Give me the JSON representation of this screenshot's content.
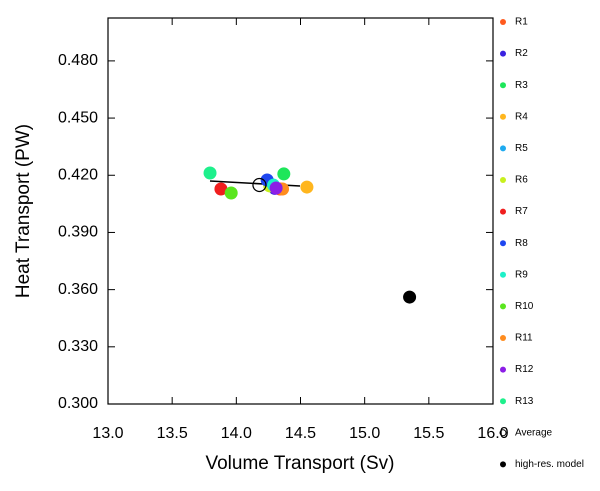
{
  "chart_data": {
    "type": "scatter",
    "xlabel": "Volume Transport (Sv)",
    "ylabel": "Heat Transport (PW)",
    "xlim": [
      13.0,
      16.0
    ],
    "xticks": [
      {
        "value": 13,
        "label": "13.0"
      },
      {
        "value": 13.5,
        "label": "13.5"
      },
      {
        "value": 14,
        "label": "14.0"
      },
      {
        "value": 14.5,
        "label": "14.5"
      },
      {
        "value": 15,
        "label": "15.0"
      },
      {
        "value": 15.5,
        "label": "15.5"
      },
      {
        "value": 16,
        "label": "16.0"
      }
    ],
    "ylim": [
      0.3,
      0.5025
    ],
    "yticks": [
      {
        "value": 0.3,
        "label": "0.300"
      },
      {
        "value": 0.33,
        "label": "0.330"
      },
      {
        "value": 0.36,
        "label": "0.360"
      },
      {
        "value": 0.39,
        "label": "0.390"
      },
      {
        "value": 0.42,
        "label": "0.420"
      },
      {
        "value": 0.45,
        "label": "0.450"
      },
      {
        "value": 0.48,
        "label": "0.480"
      }
    ],
    "legend": "right",
    "series": [
      {
        "name": "R1",
        "color": "#ff5a1e",
        "x": [
          14.34
        ],
        "values": [
          0.4128
        ]
      },
      {
        "name": "R2",
        "color": "#3a22e0",
        "x": [
          14.3
        ],
        "values": [
          0.4131
        ]
      },
      {
        "name": "R3",
        "color": "#1ee65a",
        "x": [
          14.37
        ],
        "values": [
          0.4207
        ]
      },
      {
        "name": "R4",
        "color": "#ffb61e",
        "x": [
          14.55
        ],
        "values": [
          0.4138
        ]
      },
      {
        "name": "R5",
        "color": "#1eaaf0",
        "x": [
          14.27
        ],
        "values": [
          0.4152
        ]
      },
      {
        "name": "R6",
        "color": "#c8f01e",
        "x": [
          14.26
        ],
        "values": [
          0.4144
        ]
      },
      {
        "name": "R7",
        "color": "#f01e1e",
        "x": [
          13.88
        ],
        "values": [
          0.4128
        ]
      },
      {
        "name": "R8",
        "color": "#1e46f0",
        "x": [
          14.24
        ],
        "values": [
          0.4175
        ]
      },
      {
        "name": "R9",
        "color": "#1ef0c8",
        "x": [
          14.29
        ],
        "values": [
          0.4148
        ]
      },
      {
        "name": "R10",
        "color": "#5ae61e",
        "x": [
          13.96
        ],
        "values": [
          0.4107
        ]
      },
      {
        "name": "R11",
        "color": "#ff8c1e",
        "x": [
          14.36
        ],
        "values": [
          0.4128
        ]
      },
      {
        "name": "R12",
        "color": "#8c1ee6",
        "x": [
          14.31
        ],
        "values": [
          0.4133
        ]
      },
      {
        "name": "R13",
        "color": "#1ef08c",
        "x": [
          13.795
        ],
        "values": [
          0.4212
        ]
      },
      {
        "name": "Average",
        "color": "#000000",
        "marker": "hollow",
        "x": [
          14.18
        ],
        "values": [
          0.4149
        ]
      },
      {
        "name": "high-res. model",
        "color": "#000000",
        "x": [
          15.35
        ],
        "values": [
          0.3561
        ]
      }
    ]
  }
}
